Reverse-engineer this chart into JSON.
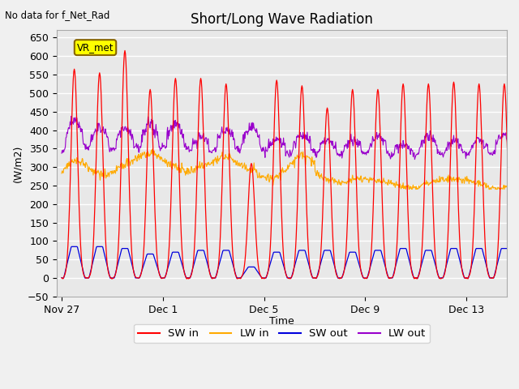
{
  "title": "Short/Long Wave Radiation",
  "top_left_text": "No data for f_Net_Rad",
  "ylabel": "(W/m2)",
  "xlabel": "Time",
  "ylim": [
    -50,
    670
  ],
  "yticks": [
    -50,
    0,
    50,
    100,
    150,
    200,
    250,
    300,
    350,
    400,
    450,
    500,
    550,
    600,
    650
  ],
  "legend_labels": [
    "SW in",
    "LW in",
    "SW out",
    "LW out"
  ],
  "legend_colors": [
    "#ff0000",
    "#ffaa00",
    "#0000dd",
    "#9900cc"
  ],
  "box_label": "VR_met",
  "box_color": "#ffff00",
  "box_border_color": "#886600",
  "x_tick_labels": [
    "Nov 27",
    "Dec 1",
    "Dec 5",
    "Dec 9",
    "Dec 13"
  ],
  "background_color": "#e8e8e8",
  "grid_color": "#ffffff",
  "title_fontsize": 12,
  "label_fontsize": 9,
  "tick_fontsize": 9,
  "sw_in_peaks": [
    565,
    555,
    615,
    510,
    540,
    540,
    525,
    310,
    535,
    520,
    460,
    510,
    510,
    525,
    525,
    530,
    525,
    525
  ],
  "sw_out_peaks": [
    85,
    85,
    80,
    65,
    70,
    75,
    75,
    30,
    70,
    75,
    75,
    70,
    75,
    80,
    75,
    80,
    80,
    80
  ],
  "lw_in_base": 250,
  "lw_out_night": 315
}
